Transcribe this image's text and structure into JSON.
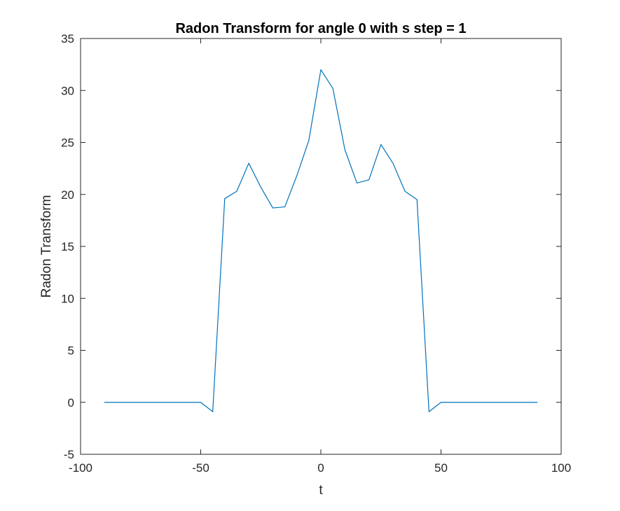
{
  "chart_data": {
    "type": "line",
    "title": "Radon Transform for angle 0 with s step = 1",
    "xlabel": "t",
    "ylabel": "Radon Transform",
    "xlim": [
      -100,
      100
    ],
    "ylim": [
      -5,
      35
    ],
    "xticks": [
      -100,
      -50,
      0,
      50,
      100
    ],
    "yticks": [
      -5,
      0,
      5,
      10,
      15,
      20,
      25,
      30,
      35
    ],
    "xtick_labels": [
      "-100",
      "-50",
      "0",
      "50",
      "100"
    ],
    "ytick_labels": [
      "-5",
      "0",
      "5",
      "10",
      "15",
      "20",
      "25",
      "30",
      "35"
    ],
    "grid": false,
    "legend": "none",
    "series": [
      {
        "color": "#0072BD",
        "x": [
          -90,
          -85,
          -80,
          -75,
          -70,
          -65,
          -60,
          -55,
          -50,
          -45,
          -40,
          -35,
          -30,
          -25,
          -20,
          -15,
          -10,
          -5,
          0,
          5,
          10,
          15,
          20,
          25,
          30,
          35,
          40,
          45,
          50,
          55,
          60,
          65,
          70,
          75,
          80,
          85,
          90
        ],
        "y": [
          0,
          0,
          0,
          0,
          0,
          0,
          0,
          0,
          0,
          -0.9,
          19.6,
          20.3,
          23.0,
          20.7,
          18.7,
          18.8,
          21.8,
          25.2,
          32.0,
          30.2,
          24.3,
          21.1,
          21.4,
          24.8,
          23.0,
          20.3,
          19.5,
          -0.9,
          0,
          0,
          0,
          0,
          0,
          0,
          0,
          0,
          0
        ]
      }
    ]
  }
}
